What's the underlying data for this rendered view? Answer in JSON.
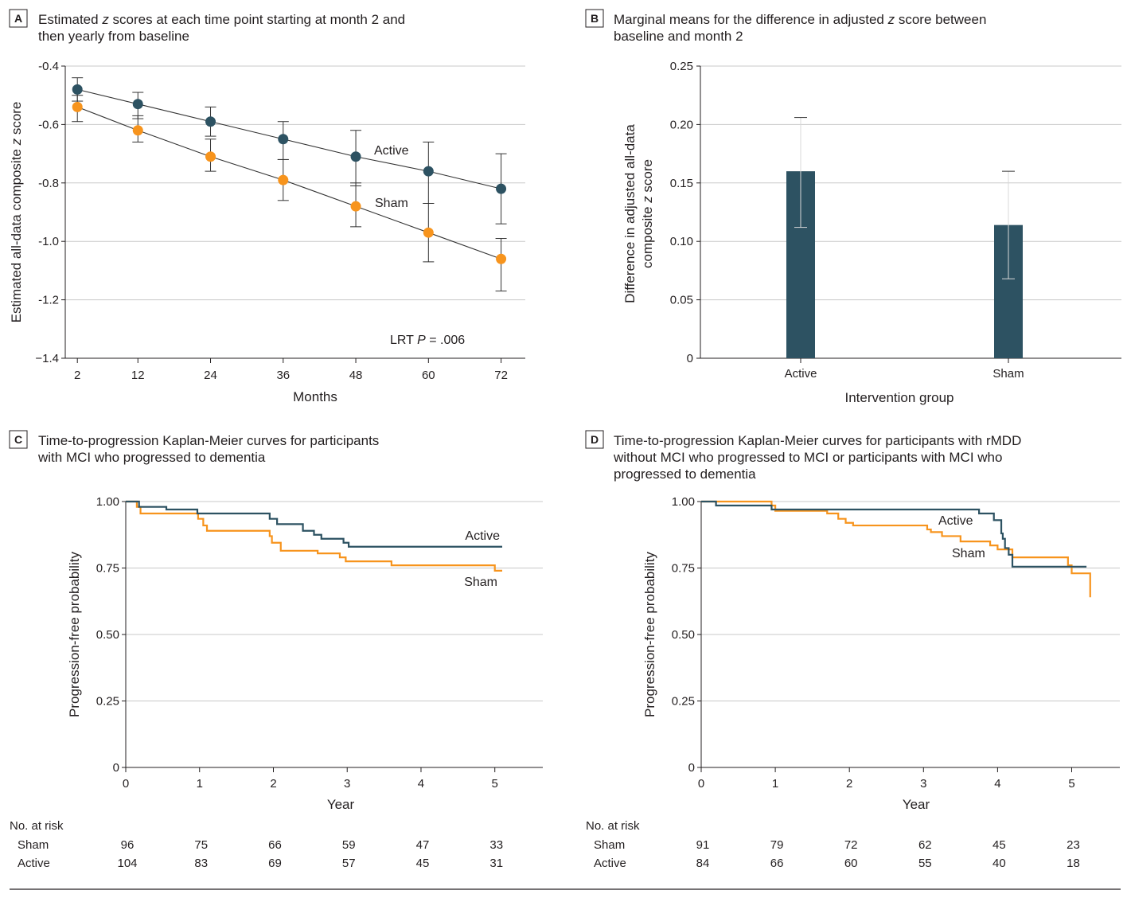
{
  "colors": {
    "active": "#2d5262",
    "sham": "#f7941d",
    "text": "#231f20",
    "grid": "#c8c8c8",
    "line": "#333333"
  },
  "chart_data": [
    {
      "id": "A",
      "type": "line",
      "badge": "A",
      "title_lines": [
        [
          {
            "t": "Estimated "
          },
          {
            "t": "z",
            "i": true
          },
          {
            "t": " scores at each time point starting at month 2 and"
          }
        ],
        [
          {
            "t": "then yearly from baseline"
          }
        ]
      ],
      "xlabel": "Months",
      "ylabel": [
        {
          "t": "Estimated all-data composite "
        },
        {
          "t": "z",
          "i": true
        },
        {
          "t": " score"
        }
      ],
      "x": [
        2,
        12,
        24,
        36,
        48,
        60,
        72
      ],
      "xticks": [
        "2",
        "12",
        "24",
        "36",
        "48",
        "60",
        "72"
      ],
      "xlim": [
        0,
        76
      ],
      "yticks": [
        -0.4,
        -0.6,
        -0.8,
        -1.0,
        -1.2,
        -1.4
      ],
      "ytick_labels": [
        "-0.4",
        "-0.6",
        "-0.8",
        "-1.0",
        "-1.2",
        "−1.4"
      ],
      "ylim": [
        -1.4,
        -0.4
      ],
      "series": [
        {
          "name": "Active",
          "values": [
            -0.48,
            -0.53,
            -0.59,
            -0.65,
            -0.71,
            -0.76,
            -0.82
          ],
          "lower": [
            -0.52,
            -0.58,
            -0.64,
            -0.72,
            -0.81,
            -0.87,
            -0.94
          ],
          "upper": [
            -0.44,
            -0.49,
            -0.54,
            -0.59,
            -0.62,
            -0.66,
            -0.7
          ]
        },
        {
          "name": "Sham",
          "values": [
            -0.54,
            -0.62,
            -0.71,
            -0.79,
            -0.88,
            -0.97,
            -1.06
          ],
          "lower": [
            -0.59,
            -0.66,
            -0.76,
            -0.86,
            -0.95,
            -1.07,
            -1.17
          ],
          "upper": [
            -0.5,
            -0.57,
            -0.65,
            -0.72,
            -0.8,
            -0.87,
            -0.99
          ]
        }
      ],
      "annotation": [
        {
          "t": "LRT "
        },
        {
          "t": "P",
          "i": true
        },
        {
          "t": " = .006"
        }
      ]
    },
    {
      "id": "B",
      "type": "bar",
      "badge": "B",
      "title_lines": [
        [
          {
            "t": "Marginal means for the difference in adjusted "
          },
          {
            "t": "z",
            "i": true
          },
          {
            "t": " score between"
          }
        ],
        [
          {
            "t": "baseline and month 2"
          }
        ]
      ],
      "xlabel": "Intervention group",
      "ylabel_lines": [
        [
          {
            "t": "Difference in adjusted all-data"
          }
        ],
        [
          {
            "t": "composite "
          },
          {
            "t": "z",
            "i": true
          },
          {
            "t": " score"
          }
        ]
      ],
      "categories": [
        "Active",
        "Sham"
      ],
      "values": [
        0.16,
        0.114
      ],
      "lower": [
        0.112,
        0.068
      ],
      "upper": [
        0.206,
        0.16
      ],
      "yticks": [
        0,
        0.05,
        0.1,
        0.15,
        0.2,
        0.25
      ],
      "ytick_labels": [
        "0",
        "0.05",
        "0.10",
        "0.15",
        "0.20",
        "0.25"
      ],
      "ylim": [
        0,
        0.25
      ]
    },
    {
      "id": "C",
      "type": "line",
      "badge": "C",
      "title_lines": [
        [
          {
            "t": "Time-to-progression Kaplan-Meier curves for participants"
          }
        ],
        [
          {
            "t": "with MCI who progressed to dementia"
          }
        ]
      ],
      "xlabel": "Year",
      "ylabel": [
        {
          "t": "Progression-free probability"
        }
      ],
      "xticks": [
        "0",
        "1",
        "2",
        "3",
        "4",
        "5"
      ],
      "xlim": [
        0,
        5.65
      ],
      "yticks": [
        0,
        0.25,
        0.5,
        0.75,
        1.0
      ],
      "ytick_labels": [
        "0",
        "0.25",
        "0.50",
        "0.75",
        "1.00"
      ],
      "ylim": [
        0,
        1
      ],
      "series": [
        {
          "name": "Active",
          "steps": [
            [
              0,
              1.0
            ],
            [
              0.18,
              0.98
            ],
            [
              0.55,
              0.97
            ],
            [
              0.97,
              0.955
            ],
            [
              1.95,
              0.935
            ],
            [
              2.05,
              0.915
            ],
            [
              2.4,
              0.89
            ],
            [
              2.55,
              0.875
            ],
            [
              2.65,
              0.86
            ],
            [
              2.95,
              0.845
            ],
            [
              3.02,
              0.83
            ],
            [
              5.1,
              0.83
            ]
          ]
        },
        {
          "name": "Sham",
          "steps": [
            [
              0,
              1.0
            ],
            [
              0.15,
              0.98
            ],
            [
              0.2,
              0.955
            ],
            [
              0.98,
              0.935
            ],
            [
              1.05,
              0.91
            ],
            [
              1.1,
              0.89
            ],
            [
              1.95,
              0.87
            ],
            [
              1.98,
              0.845
            ],
            [
              2.1,
              0.815
            ],
            [
              2.6,
              0.805
            ],
            [
              2.9,
              0.79
            ],
            [
              2.98,
              0.775
            ],
            [
              3.6,
              0.76
            ],
            [
              5.0,
              0.74
            ],
            [
              5.1,
              0.74
            ]
          ]
        }
      ],
      "risk_label": "No. at risk",
      "risk": [
        {
          "name": "Sham",
          "values": [
            "96",
            "75",
            "66",
            "59",
            "47",
            "33"
          ]
        },
        {
          "name": "Active",
          "values": [
            "104",
            "83",
            "69",
            "57",
            "45",
            "31"
          ]
        }
      ]
    },
    {
      "id": "D",
      "type": "line",
      "badge": "D",
      "title_lines": [
        [
          {
            "t": "Time-to-progression Kaplan-Meier curves for participants with rMDD"
          }
        ],
        [
          {
            "t": "without MCI who progressed to MCI or participants with MCI who"
          }
        ],
        [
          {
            "t": "progressed to dementia"
          }
        ]
      ],
      "xlabel": "Year",
      "ylabel": [
        {
          "t": "Progression-free probability"
        }
      ],
      "xticks": [
        "0",
        "1",
        "2",
        "3",
        "4",
        "5"
      ],
      "xlim": [
        0,
        5.65
      ],
      "yticks": [
        0,
        0.25,
        0.5,
        0.75,
        1.0
      ],
      "ytick_labels": [
        "0",
        "0.25",
        "0.50",
        "0.75",
        "1.00"
      ],
      "ylim": [
        0,
        1
      ],
      "series": [
        {
          "name": "Active",
          "steps": [
            [
              0,
              1.0
            ],
            [
              0.2,
              0.985
            ],
            [
              0.95,
              0.97
            ],
            [
              3.75,
              0.955
            ],
            [
              3.95,
              0.93
            ],
            [
              4.05,
              0.88
            ],
            [
              4.07,
              0.86
            ],
            [
              4.1,
              0.825
            ],
            [
              4.15,
              0.8
            ],
            [
              4.2,
              0.755
            ],
            [
              5.2,
              0.755
            ]
          ]
        },
        {
          "name": "Sham",
          "steps": [
            [
              0,
              1.0
            ],
            [
              0.95,
              0.985
            ],
            [
              1.0,
              0.965
            ],
            [
              1.7,
              0.955
            ],
            [
              1.85,
              0.935
            ],
            [
              1.95,
              0.92
            ],
            [
              2.05,
              0.91
            ],
            [
              3.05,
              0.895
            ],
            [
              3.1,
              0.885
            ],
            [
              3.25,
              0.87
            ],
            [
              3.5,
              0.85
            ],
            [
              3.9,
              0.835
            ],
            [
              4.0,
              0.82
            ],
            [
              4.2,
              0.79
            ],
            [
              4.95,
              0.76
            ],
            [
              5.0,
              0.73
            ],
            [
              5.25,
              0.68
            ],
            [
              5.25,
              0.64
            ]
          ]
        }
      ],
      "risk_label": "No. at risk",
      "risk": [
        {
          "name": "Sham",
          "values": [
            "91",
            "79",
            "72",
            "62",
            "45",
            "23"
          ]
        },
        {
          "name": "Active",
          "values": [
            "84",
            "66",
            "60",
            "55",
            "40",
            "18"
          ]
        }
      ]
    }
  ]
}
